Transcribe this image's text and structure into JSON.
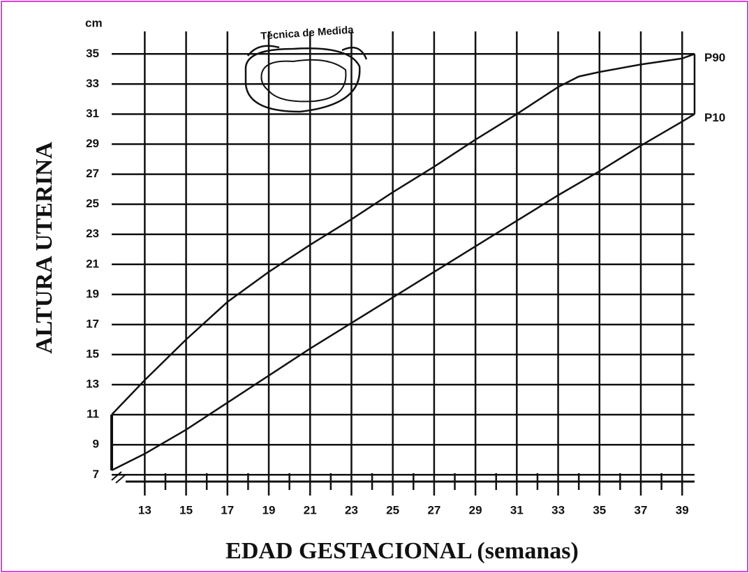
{
  "chart_data": {
    "type": "line",
    "x_label": "EDAD GESTACIONAL (semanas)",
    "y_label": "ALTURA UTERINA",
    "y_unit": "cm",
    "annotation": "Técnica de Medida",
    "series": [
      {
        "name": "P90",
        "color": "#111111",
        "x": [
          11.4,
          13,
          15,
          17,
          19,
          21,
          23,
          25,
          27,
          29,
          31,
          33,
          34,
          35,
          37,
          39,
          39.6
        ],
        "values": [
          11,
          13.3,
          16,
          18.5,
          20.5,
          22.3,
          24,
          25.8,
          27.5,
          29.3,
          31,
          32.8,
          33.5,
          33.8,
          34.3,
          34.7,
          35
        ]
      },
      {
        "name": "P10",
        "color": "#111111",
        "x": [
          11.4,
          13,
          15,
          17,
          19,
          21,
          23,
          25,
          27,
          29,
          31,
          33,
          35,
          37,
          39,
          39.6
        ],
        "values": [
          7.3,
          8.4,
          10,
          11.8,
          13.6,
          15.4,
          17.1,
          18.8,
          20.5,
          22.2,
          23.9,
          25.6,
          27.2,
          28.9,
          30.5,
          31
        ]
      }
    ],
    "xlim": [
      11.4,
      39.6
    ],
    "xticks": [
      13,
      15,
      17,
      19,
      21,
      23,
      25,
      27,
      29,
      31,
      33,
      35,
      37,
      39
    ],
    "ylim": [
      6.55,
      36.5
    ],
    "yticks": [
      7,
      9,
      11,
      13,
      15,
      17,
      19,
      21,
      23,
      25,
      27,
      29,
      31,
      33,
      35
    ],
    "grid": true
  }
}
